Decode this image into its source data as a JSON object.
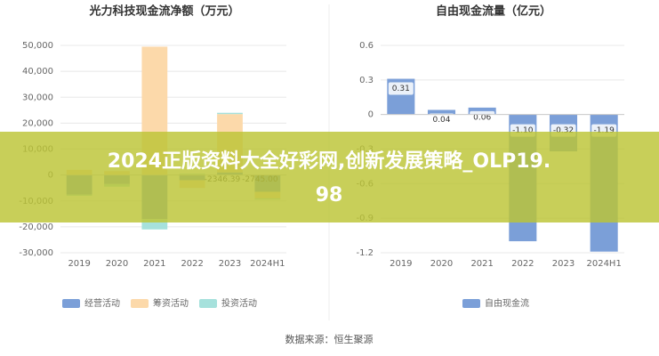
{
  "chart_data": [
    {
      "type": "bar",
      "stacked": true,
      "title": "光力科技现金流净额（万元）",
      "categories": [
        "2019",
        "2020",
        "2021",
        "2022",
        "2023",
        "2024H1"
      ],
      "series": [
        {
          "name": "经营活动",
          "color": "#7b9fd8",
          "values": [
            -7500,
            -3500,
            -17000,
            -2000,
            1000,
            -6500
          ]
        },
        {
          "name": "筹资活动",
          "color": "#fcd9aa",
          "values": [
            2000,
            1500,
            49500,
            -3000,
            22500,
            -2500
          ]
        },
        {
          "name": "投资活动",
          "color": "#a6e1dc",
          "values": [
            -500,
            -1000,
            -4000,
            500,
            500,
            -500
          ]
        }
      ],
      "annotations": [
        "-2346.39",
        "-2745.00"
      ],
      "ylim": [
        -30000,
        50000
      ],
      "yticks": [
        {
          "value": -30000,
          "label": "-30,000"
        },
        {
          "value": -20000,
          "label": "-20,000"
        },
        {
          "value": -10000,
          "label": "-10,000"
        },
        0,
        {
          "value": 10000,
          "label": "10,000"
        },
        {
          "value": 20000,
          "label": "20,000"
        },
        {
          "value": 30000,
          "label": "30,000"
        },
        {
          "value": 40000,
          "label": "40,000"
        },
        {
          "value": 50000,
          "label": "50,000"
        }
      ],
      "grid": true
    },
    {
      "type": "bar",
      "title": "自由现金流量（亿元）",
      "categories": [
        "2019",
        "2020",
        "2021",
        "2022",
        "2023",
        "2024H1"
      ],
      "series": [
        {
          "name": "自由现金流",
          "color": "#7b9fd8",
          "values": [
            0.31,
            0.04,
            0.06,
            -1.1,
            -0.32,
            -1.19
          ],
          "value_labels": [
            "0.31",
            "0.04",
            "0.06",
            "-1.10",
            "-0.32",
            "-1.19"
          ]
        }
      ],
      "ylim": [
        -1.2,
        0.6
      ],
      "yticks": [
        -1.2,
        -0.9,
        -0.6,
        -0.3,
        0,
        0.3,
        0.6
      ],
      "grid": true
    }
  ],
  "banner": "2024正版资料大全好彩网,创新发展策略_OLP19.98",
  "source": "数据来源：恒生聚源"
}
